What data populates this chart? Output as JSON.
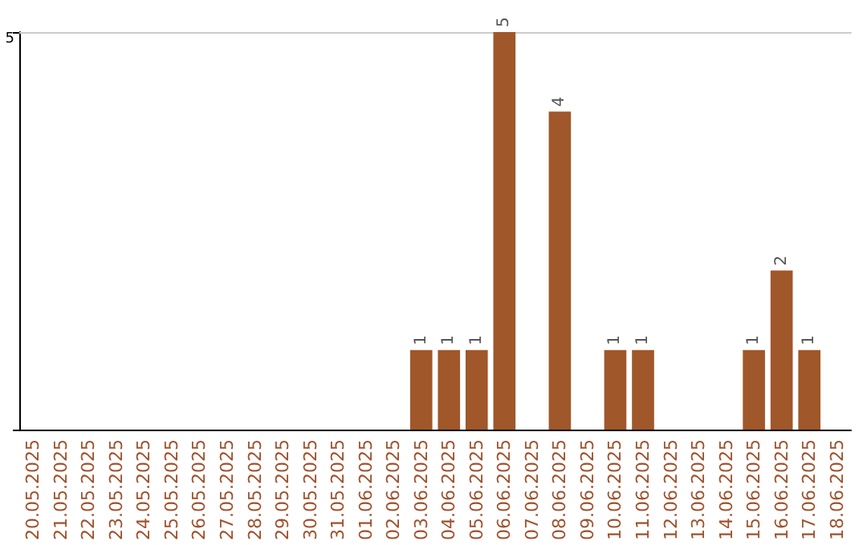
{
  "chart_data": {
    "type": "bar",
    "categories": [
      "20.05.2025",
      "21.05.2025",
      "22.05.2025",
      "23.05.2025",
      "24.05.2025",
      "25.05.2025",
      "26.05.2025",
      "27.05.2025",
      "28.05.2025",
      "29.05.2025",
      "30.05.2025",
      "31.05.2025",
      "01.06.2025",
      "02.06.2025",
      "03.06.2025",
      "04.06.2025",
      "05.06.2025",
      "06.06.2025",
      "07.06.2025",
      "08.06.2025",
      "09.06.2025",
      "10.06.2025",
      "11.06.2025",
      "12.06.2025",
      "13.06.2025",
      "14.06.2025",
      "15.06.2025",
      "16.06.2025",
      "17.06.2025",
      "18.06.2025"
    ],
    "values": [
      null,
      null,
      null,
      null,
      null,
      null,
      null,
      null,
      null,
      null,
      null,
      null,
      null,
      null,
      1,
      1,
      1,
      5,
      null,
      4,
      null,
      1,
      1,
      null,
      null,
      null,
      1,
      2,
      1,
      null
    ],
    "color": "#a0572a",
    "ylim": [
      0,
      5
    ],
    "yticks": [
      {
        "value": 0,
        "label": null
      },
      5
    ],
    "data_labels": true
  }
}
